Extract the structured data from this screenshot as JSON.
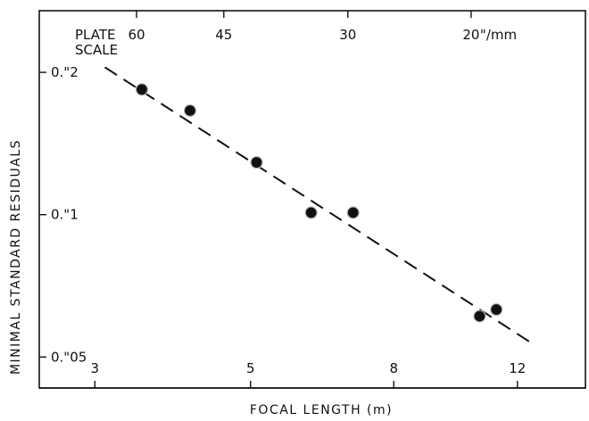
{
  "chart_data": {
    "type": "scatter",
    "xscale": "log",
    "yscale": "log",
    "xlabel": "FOCAL LENGTH (m)",
    "ylabel": "MINIMAL STANDARD RESIDUALS",
    "xlim": [
      2.5,
      15.0
    ],
    "ylim": [
      0.043,
      0.27
    ],
    "x_ticks": [
      {
        "value": 3,
        "label": "3"
      },
      {
        "value": 5,
        "label": "5"
      },
      {
        "value": 8,
        "label": "8"
      },
      {
        "value": 12,
        "label": "12"
      }
    ],
    "y_ticks": [
      {
        "value": 0.2,
        "label": "0.\"2"
      },
      {
        "value": 0.1,
        "label": "0.\"1"
      },
      {
        "value": 0.05,
        "label": "0.\"05"
      }
    ],
    "top_axis": {
      "title_line1": "PLATE",
      "title_line2": "SCALE",
      "unit_suffix": "\"/mm",
      "ticks": [
        {
          "focal_length": 3.44,
          "label": "60"
        },
        {
          "focal_length": 4.58,
          "label": "45"
        },
        {
          "focal_length": 6.88,
          "label": "30"
        },
        {
          "focal_length": 10.31,
          "label": "20"
        }
      ]
    },
    "points": [
      {
        "x": 3.5,
        "y": 0.184
      },
      {
        "x": 4.1,
        "y": 0.166
      },
      {
        "x": 5.1,
        "y": 0.129
      },
      {
        "x": 6.1,
        "y": 0.101
      },
      {
        "x": 7.0,
        "y": 0.101
      },
      {
        "x": 10.6,
        "y": 0.061
      },
      {
        "x": 11.2,
        "y": 0.063
      }
    ],
    "fit_line": {
      "style": "dashed",
      "x": [
        3.1,
        12.7
      ],
      "y": [
        0.205,
        0.053
      ]
    },
    "grid": false,
    "legend": "none"
  }
}
